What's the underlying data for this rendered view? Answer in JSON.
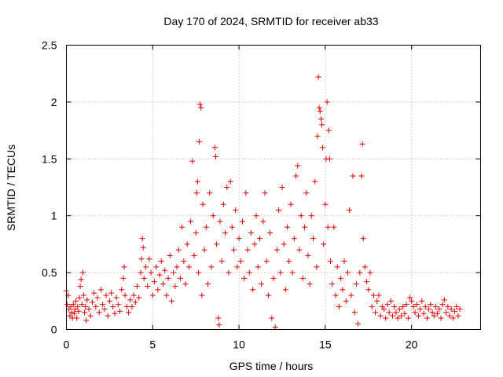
{
  "chart_data": {
    "type": "scatter",
    "title": "Day 170 of 2024, SRMTID for receiver ab33",
    "xlabel": "GPS time / hours",
    "ylabel": "SRMTID / TECUs",
    "xlim": [
      0,
      24
    ],
    "ylim": [
      0,
      2.5
    ],
    "xticks": [
      0,
      5,
      10,
      15,
      20
    ],
    "yticks": [
      0,
      0.5,
      1,
      1.5,
      2,
      2.5
    ],
    "xtick_labels": [
      "0",
      "5",
      "10",
      "15",
      "20"
    ],
    "ytick_labels": [
      "0",
      "0.5",
      "1",
      "1.5",
      "2",
      "2.5"
    ],
    "grid": true,
    "marker": "+",
    "color": "#e00000",
    "series": [
      {
        "name": "SRMTID",
        "points": [
          [
            0.0,
            0.34
          ],
          [
            0.05,
            0.22
          ],
          [
            0.1,
            0.3
          ],
          [
            0.15,
            0.18
          ],
          [
            0.2,
            0.12
          ],
          [
            0.25,
            0.2
          ],
          [
            0.3,
            0.15
          ],
          [
            0.35,
            0.1
          ],
          [
            0.4,
            0.22
          ],
          [
            0.45,
            0.14
          ],
          [
            0.5,
            0.18
          ],
          [
            0.55,
            0.25
          ],
          [
            0.6,
            0.1
          ],
          [
            0.65,
            0.2
          ],
          [
            0.7,
            0.16
          ],
          [
            0.75,
            0.28
          ],
          [
            0.8,
            0.38
          ],
          [
            0.85,
            0.44
          ],
          [
            0.9,
            0.22
          ],
          [
            0.95,
            0.5
          ],
          [
            1.0,
            0.3
          ],
          [
            1.05,
            0.15
          ],
          [
            1.1,
            0.2
          ],
          [
            1.15,
            0.08
          ],
          [
            1.2,
            0.26
          ],
          [
            1.3,
            0.18
          ],
          [
            1.4,
            0.12
          ],
          [
            1.5,
            0.24
          ],
          [
            1.6,
            0.32
          ],
          [
            1.7,
            0.2
          ],
          [
            1.8,
            0.28
          ],
          [
            1.9,
            0.15
          ],
          [
            2.0,
            0.35
          ],
          [
            2.1,
            0.22
          ],
          [
            2.2,
            0.18
          ],
          [
            2.3,
            0.3
          ],
          [
            2.4,
            0.12
          ],
          [
            2.5,
            0.25
          ],
          [
            2.6,
            0.32
          ],
          [
            2.7,
            0.2
          ],
          [
            2.8,
            0.14
          ],
          [
            2.9,
            0.28
          ],
          [
            3.0,
            0.22
          ],
          [
            3.1,
            0.16
          ],
          [
            3.2,
            0.35
          ],
          [
            3.3,
            0.45
          ],
          [
            3.35,
            0.55
          ],
          [
            3.4,
            0.3
          ],
          [
            3.5,
            0.2
          ],
          [
            3.6,
            0.15
          ],
          [
            3.7,
            0.26
          ],
          [
            3.8,
            0.2
          ],
          [
            3.9,
            0.3
          ],
          [
            4.0,
            0.24
          ],
          [
            4.1,
            0.38
          ],
          [
            4.2,
            0.28
          ],
          [
            4.3,
            0.5
          ],
          [
            4.35,
            0.62
          ],
          [
            4.4,
            0.8
          ],
          [
            4.45,
            0.72
          ],
          [
            4.5,
            0.45
          ],
          [
            4.6,
            0.55
          ],
          [
            4.7,
            0.38
          ],
          [
            4.8,
            0.62
          ],
          [
            4.9,
            0.5
          ],
          [
            5.0,
            0.3
          ],
          [
            5.1,
            0.42
          ],
          [
            5.2,
            0.55
          ],
          [
            5.3,
            0.35
          ],
          [
            5.4,
            0.48
          ],
          [
            5.5,
            0.6
          ],
          [
            5.6,
            0.4
          ],
          [
            5.7,
            0.52
          ],
          [
            5.8,
            0.3
          ],
          [
            5.9,
            0.45
          ],
          [
            6.0,
            0.65
          ],
          [
            6.1,
            0.25
          ],
          [
            6.2,
            0.5
          ],
          [
            6.3,
            0.38
          ],
          [
            6.4,
            0.55
          ],
          [
            6.5,
            0.7
          ],
          [
            6.6,
            0.45
          ],
          [
            6.7,
            0.9
          ],
          [
            6.8,
            0.6
          ],
          [
            6.9,
            0.4
          ],
          [
            7.0,
            0.75
          ],
          [
            7.1,
            0.55
          ],
          [
            7.2,
            0.95
          ],
          [
            7.3,
            1.48
          ],
          [
            7.4,
            0.65
          ],
          [
            7.5,
            0.85
          ],
          [
            7.55,
            1.2
          ],
          [
            7.6,
            1.3
          ],
          [
            7.65,
            0.5
          ],
          [
            7.7,
            1.65
          ],
          [
            7.75,
            1.98
          ],
          [
            7.8,
            1.95
          ],
          [
            7.85,
            0.3
          ],
          [
            7.9,
            1.1
          ],
          [
            8.0,
            0.7
          ],
          [
            8.1,
            0.9
          ],
          [
            8.2,
            0.4
          ],
          [
            8.3,
            1.2
          ],
          [
            8.4,
            0.55
          ],
          [
            8.5,
            1.0
          ],
          [
            8.6,
            1.6
          ],
          [
            8.65,
            1.52
          ],
          [
            8.7,
            0.75
          ],
          [
            8.8,
            0.1
          ],
          [
            8.85,
            0.04
          ],
          [
            8.9,
            0.95
          ],
          [
            9.0,
            0.6
          ],
          [
            9.1,
            1.1
          ],
          [
            9.2,
            0.85
          ],
          [
            9.3,
            1.25
          ],
          [
            9.4,
            0.5
          ],
          [
            9.5,
            1.3
          ],
          [
            9.6,
            0.9
          ],
          [
            9.7,
            0.7
          ],
          [
            9.8,
            1.05
          ],
          [
            9.9,
            0.55
          ],
          [
            10.0,
            0.8
          ],
          [
            10.1,
            0.6
          ],
          [
            10.2,
            0.95
          ],
          [
            10.3,
            0.45
          ],
          [
            10.4,
            1.2
          ],
          [
            10.5,
            0.7
          ],
          [
            10.6,
            0.5
          ],
          [
            10.7,
            0.85
          ],
          [
            10.8,
            0.35
          ],
          [
            10.9,
            0.75
          ],
          [
            11.0,
            1.0
          ],
          [
            11.1,
            0.55
          ],
          [
            11.2,
            0.8
          ],
          [
            11.3,
            0.4
          ],
          [
            11.4,
            0.95
          ],
          [
            11.5,
            1.2
          ],
          [
            11.6,
            0.6
          ],
          [
            11.7,
            0.3
          ],
          [
            11.8,
            0.85
          ],
          [
            11.9,
            0.1
          ],
          [
            12.0,
            0.45
          ],
          [
            12.1,
            0.02
          ],
          [
            12.2,
            0.7
          ],
          [
            12.3,
            1.05
          ],
          [
            12.4,
            0.5
          ],
          [
            12.5,
            1.25
          ],
          [
            12.6,
            0.75
          ],
          [
            12.7,
            0.35
          ],
          [
            12.8,
            0.9
          ],
          [
            12.9,
            0.6
          ],
          [
            13.0,
            1.1
          ],
          [
            13.1,
            0.5
          ],
          [
            13.2,
            0.8
          ],
          [
            13.3,
            1.35
          ],
          [
            13.4,
            1.44
          ],
          [
            13.5,
            0.7
          ],
          [
            13.6,
            1.0
          ],
          [
            13.7,
            0.45
          ],
          [
            13.8,
            0.9
          ],
          [
            13.9,
            1.2
          ],
          [
            14.0,
            0.65
          ],
          [
            14.1,
            0.4
          ],
          [
            14.2,
            1.0
          ],
          [
            14.3,
            0.8
          ],
          [
            14.4,
            1.3
          ],
          [
            14.5,
            0.55
          ],
          [
            14.55,
            1.7
          ],
          [
            14.6,
            2.22
          ],
          [
            14.65,
            1.95
          ],
          [
            14.7,
            1.92
          ],
          [
            14.75,
            1.85
          ],
          [
            14.8,
            1.8
          ],
          [
            14.85,
            1.6
          ],
          [
            14.9,
            0.75
          ],
          [
            15.0,
            1.1
          ],
          [
            15.05,
            1.5
          ],
          [
            15.1,
            2.0
          ],
          [
            15.15,
            0.9
          ],
          [
            15.2,
            1.75
          ],
          [
            15.25,
            1.5
          ],
          [
            15.3,
            0.6
          ],
          [
            15.4,
            0.4
          ],
          [
            15.5,
            0.9
          ],
          [
            15.6,
            0.3
          ],
          [
            15.7,
            0.55
          ],
          [
            15.8,
            0.2
          ],
          [
            15.9,
            0.45
          ],
          [
            16.0,
            0.35
          ],
          [
            16.1,
            0.6
          ],
          [
            16.2,
            0.25
          ],
          [
            16.3,
            0.5
          ],
          [
            16.4,
            1.05
          ],
          [
            16.5,
            0.3
          ],
          [
            16.6,
            1.35
          ],
          [
            16.7,
            0.15
          ],
          [
            16.8,
            0.4
          ],
          [
            16.9,
            0.05
          ],
          [
            17.0,
            0.5
          ],
          [
            17.1,
            1.35
          ],
          [
            17.15,
            1.63
          ],
          [
            17.2,
            0.8
          ],
          [
            17.3,
            0.55
          ],
          [
            17.4,
            0.42
          ],
          [
            17.5,
            0.35
          ],
          [
            17.6,
            0.5
          ],
          [
            17.7,
            0.2
          ],
          [
            17.8,
            0.3
          ],
          [
            17.9,
            0.15
          ],
          [
            18.0,
            0.25
          ],
          [
            18.1,
            0.3
          ],
          [
            18.2,
            0.12
          ],
          [
            18.3,
            0.2
          ],
          [
            18.4,
            0.18
          ],
          [
            18.5,
            0.1
          ],
          [
            18.6,
            0.22
          ],
          [
            18.7,
            0.15
          ],
          [
            18.8,
            0.25
          ],
          [
            18.9,
            0.12
          ],
          [
            19.0,
            0.2
          ],
          [
            19.1,
            0.15
          ],
          [
            19.2,
            0.1
          ],
          [
            19.3,
            0.18
          ],
          [
            19.4,
            0.12
          ],
          [
            19.5,
            0.2
          ],
          [
            19.6,
            0.14
          ],
          [
            19.7,
            0.22
          ],
          [
            19.8,
            0.1
          ],
          [
            19.9,
            0.28
          ],
          [
            20.0,
            0.25
          ],
          [
            20.1,
            0.2
          ],
          [
            20.2,
            0.15
          ],
          [
            20.3,
            0.22
          ],
          [
            20.4,
            0.12
          ],
          [
            20.5,
            0.18
          ],
          [
            20.6,
            0.25
          ],
          [
            20.7,
            0.14
          ],
          [
            20.8,
            0.2
          ],
          [
            20.9,
            0.1
          ],
          [
            21.0,
            0.18
          ],
          [
            21.1,
            0.22
          ],
          [
            21.2,
            0.15
          ],
          [
            21.3,
            0.12
          ],
          [
            21.4,
            0.2
          ],
          [
            21.5,
            0.14
          ],
          [
            21.6,
            0.18
          ],
          [
            21.7,
            0.1
          ],
          [
            21.8,
            0.22
          ],
          [
            21.9,
            0.26
          ],
          [
            22.0,
            0.15
          ],
          [
            22.1,
            0.2
          ],
          [
            22.2,
            0.12
          ],
          [
            22.3,
            0.18
          ],
          [
            22.4,
            0.1
          ],
          [
            22.5,
            0.16
          ],
          [
            22.6,
            0.2
          ],
          [
            22.7,
            0.12
          ],
          [
            22.8,
            0.18
          ]
        ]
      }
    ]
  }
}
